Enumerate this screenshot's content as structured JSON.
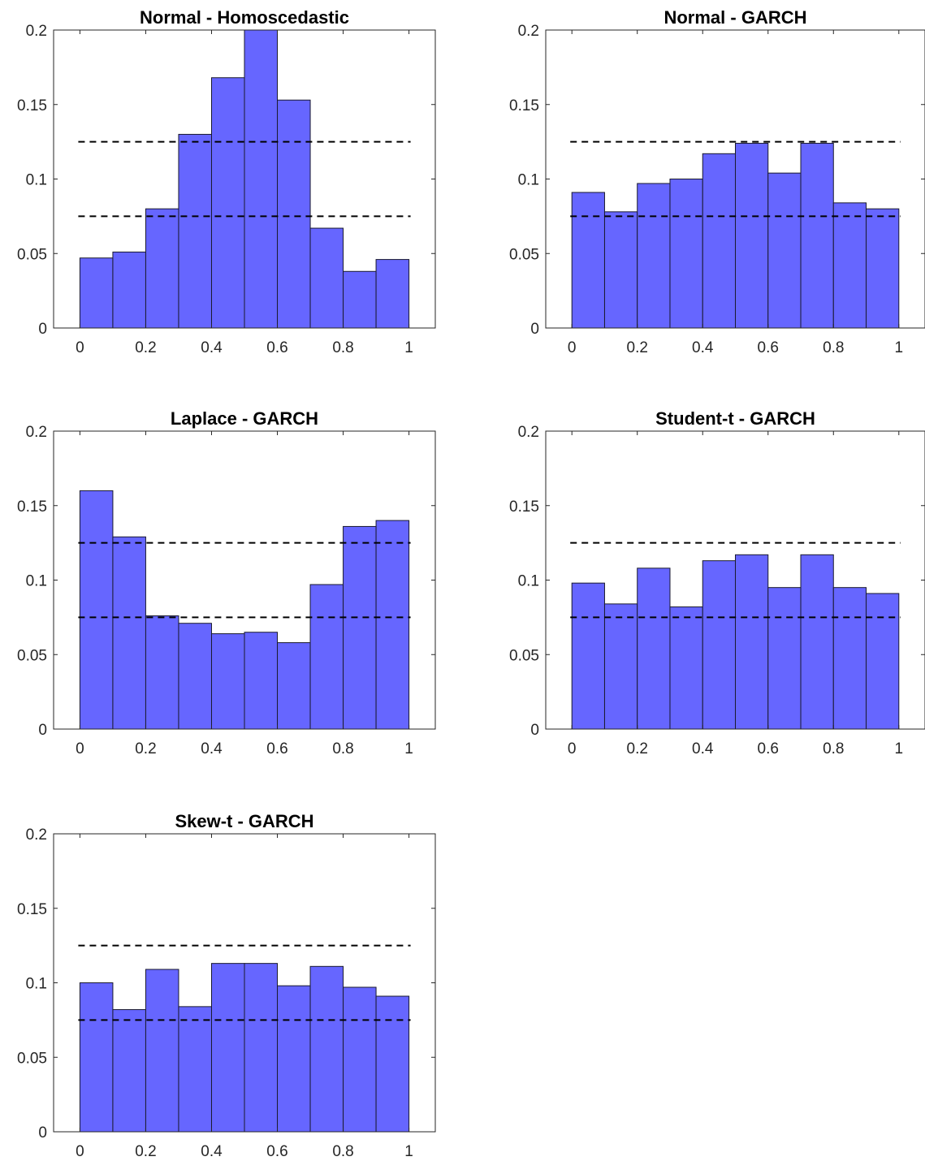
{
  "colors": {
    "bar_fill": "#6666ff",
    "bar_edge": "#1a1a2e",
    "axis": "#262626",
    "reference_line": "#000000",
    "background": "#ffffff"
  },
  "chart_data": [
    {
      "type": "bar",
      "title": "Normal - Homoscedastic",
      "x_bin_edges": [
        0,
        0.1,
        0.2,
        0.3,
        0.4,
        0.5,
        0.6,
        0.7,
        0.8,
        0.9,
        1
      ],
      "values": [
        0.047,
        0.051,
        0.08,
        0.13,
        0.168,
        0.2,
        0.153,
        0.067,
        0.038,
        0.046
      ],
      "reference_lines": [
        0.125,
        0.075
      ],
      "xlim": [
        -0.08,
        1.08
      ],
      "ylim": [
        0,
        0.2
      ],
      "xticks": [
        "0",
        "0.2",
        "0.4",
        "0.6",
        "0.8",
        "1"
      ],
      "yticks": [
        "0",
        "0.05",
        "0.1",
        "0.15",
        "0.2"
      ],
      "xlabel": "",
      "ylabel": "",
      "grid": false
    },
    {
      "type": "bar",
      "title": "Normal - GARCH",
      "x_bin_edges": [
        0,
        0.1,
        0.2,
        0.3,
        0.4,
        0.5,
        0.6,
        0.7,
        0.8,
        0.9,
        1
      ],
      "values": [
        0.091,
        0.078,
        0.097,
        0.1,
        0.117,
        0.124,
        0.104,
        0.124,
        0.084,
        0.08
      ],
      "reference_lines": [
        0.125,
        0.075
      ],
      "xlim": [
        -0.08,
        1.08
      ],
      "ylim": [
        0,
        0.2
      ],
      "xticks": [
        "0",
        "0.2",
        "0.4",
        "0.6",
        "0.8",
        "1"
      ],
      "yticks": [
        "0",
        "0.05",
        "0.1",
        "0.15",
        "0.2"
      ],
      "xlabel": "",
      "ylabel": "",
      "grid": false
    },
    {
      "type": "bar",
      "title": "Laplace - GARCH",
      "x_bin_edges": [
        0,
        0.1,
        0.2,
        0.3,
        0.4,
        0.5,
        0.6,
        0.7,
        0.8,
        0.9,
        1
      ],
      "values": [
        0.16,
        0.129,
        0.076,
        0.071,
        0.064,
        0.065,
        0.058,
        0.097,
        0.136,
        0.14
      ],
      "reference_lines": [
        0.125,
        0.075
      ],
      "xlim": [
        -0.08,
        1.08
      ],
      "ylim": [
        0,
        0.2
      ],
      "xticks": [
        "0",
        "0.2",
        "0.4",
        "0.6",
        "0.8",
        "1"
      ],
      "yticks": [
        "0",
        "0.05",
        "0.1",
        "0.15",
        "0.2"
      ],
      "xlabel": "",
      "ylabel": "",
      "grid": false
    },
    {
      "type": "bar",
      "title": "Student-t - GARCH",
      "x_bin_edges": [
        0,
        0.1,
        0.2,
        0.3,
        0.4,
        0.5,
        0.6,
        0.7,
        0.8,
        0.9,
        1
      ],
      "values": [
        0.098,
        0.084,
        0.108,
        0.082,
        0.113,
        0.117,
        0.095,
        0.117,
        0.095,
        0.091
      ],
      "reference_lines": [
        0.125,
        0.075
      ],
      "xlim": [
        -0.08,
        1.08
      ],
      "ylim": [
        0,
        0.2
      ],
      "xticks": [
        "0",
        "0.2",
        "0.4",
        "0.6",
        "0.8",
        "1"
      ],
      "yticks": [
        "0",
        "0.05",
        "0.1",
        "0.15",
        "0.2"
      ],
      "xlabel": "",
      "ylabel": "",
      "grid": false
    },
    {
      "type": "bar",
      "title": "Skew-t - GARCH",
      "x_bin_edges": [
        0,
        0.1,
        0.2,
        0.3,
        0.4,
        0.5,
        0.6,
        0.7,
        0.8,
        0.9,
        1
      ],
      "values": [
        0.1,
        0.082,
        0.109,
        0.084,
        0.113,
        0.113,
        0.098,
        0.111,
        0.097,
        0.091
      ],
      "reference_lines": [
        0.125,
        0.075
      ],
      "xlim": [
        -0.08,
        1.08
      ],
      "ylim": [
        0,
        0.2
      ],
      "xticks": [
        "0",
        "0.2",
        "0.4",
        "0.6",
        "0.8",
        "1"
      ],
      "yticks": [
        "0",
        "0.05",
        "0.1",
        "0.15",
        "0.2"
      ],
      "xlabel": "",
      "ylabel": "",
      "grid": false
    }
  ]
}
